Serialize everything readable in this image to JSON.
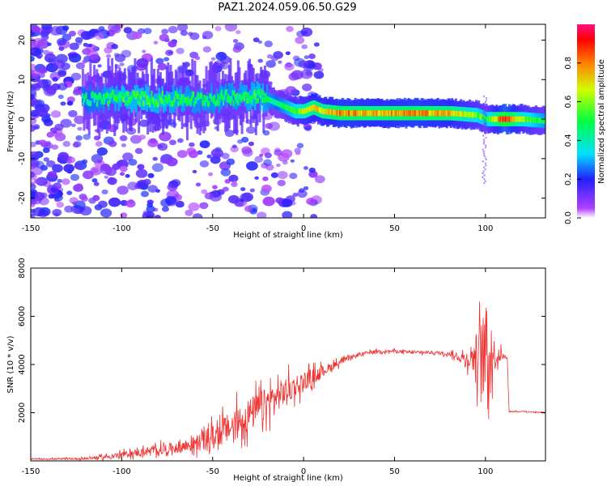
{
  "title": "PAZ1.2024.059.06.50.G29",
  "colors": {
    "snr_line": "#ee3333",
    "axes": "#000000",
    "background": "#ffffff"
  },
  "chart_data": [
    {
      "type": "heatmap",
      "title": "PAZ1.2024.059.06.50.G29",
      "xlabel": "Height of straight line (km)",
      "ylabel": "Frequency (Hz)",
      "xlim": [
        -150,
        133
      ],
      "ylim": [
        -25,
        24
      ],
      "xticks": [
        -150,
        -100,
        -50,
        0,
        50,
        100
      ],
      "yticks": [
        -20,
        -10,
        0,
        10,
        20
      ],
      "colorbar": {
        "label": "Normalized spectral amplitude",
        "range": [
          0,
          1
        ],
        "ticks": [
          0.0,
          0.2,
          0.4,
          0.6,
          0.8
        ],
        "colormap": "gist_rainbow"
      },
      "ridge": {
        "x": [
          -120,
          -100,
          -80,
          -60,
          -40,
          -25,
          -15,
          -5,
          0,
          5,
          10,
          20,
          40,
          60,
          80,
          95,
          100,
          110,
          120,
          133
        ],
        "frequency": [
          5,
          5.5,
          5,
          5,
          5.5,
          6,
          4,
          2,
          2,
          3,
          2,
          1.5,
          1.5,
          1.5,
          1.5,
          1,
          0,
          0,
          0,
          -0.5
        ],
        "amplitude": [
          0.45,
          0.55,
          0.55,
          0.5,
          0.5,
          0.55,
          0.45,
          0.6,
          0.7,
          0.8,
          0.75,
          0.85,
          0.8,
          0.85,
          0.8,
          0.6,
          0.55,
          0.95,
          0.65,
          0.5
        ]
      }
    },
    {
      "type": "line",
      "xlabel": "Height of straight line (km)",
      "ylabel": "SNR (10 * v/v)",
      "xlim": [
        -150,
        133
      ],
      "ylim": [
        0,
        8000
      ],
      "xticks": [
        -150,
        -100,
        -50,
        0,
        50,
        100
      ],
      "yticks": [
        2000,
        4000,
        6000,
        8000
      ],
      "series": [
        {
          "x": [
            -150,
            -140,
            -130,
            -120,
            -110,
            -100,
            -90,
            -80,
            -70,
            -60,
            -50,
            -40,
            -30,
            -20,
            -10,
            0,
            10,
            20,
            30,
            40,
            50,
            60,
            70,
            80,
            85,
            90,
            95,
            100,
            105,
            110,
            112,
            113,
            120,
            133
          ],
          "values": [
            80,
            80,
            80,
            100,
            150,
            250,
            350,
            450,
            550,
            700,
            1000,
            1400,
            1900,
            2400,
            2900,
            3300,
            3700,
            4100,
            4400,
            4550,
            4550,
            4500,
            4500,
            4450,
            4300,
            4250,
            4350,
            4400,
            4400,
            4350,
            4300,
            2050,
            2050,
            2000
          ],
          "noise": [
            20,
            30,
            40,
            60,
            100,
            150,
            200,
            250,
            300,
            400,
            600,
            800,
            900,
            800,
            700,
            500,
            300,
            150,
            100,
            80,
            80,
            80,
            80,
            100,
            200,
            400,
            1200,
            2600,
            800,
            100,
            50,
            50,
            40,
            40
          ]
        }
      ]
    }
  ]
}
